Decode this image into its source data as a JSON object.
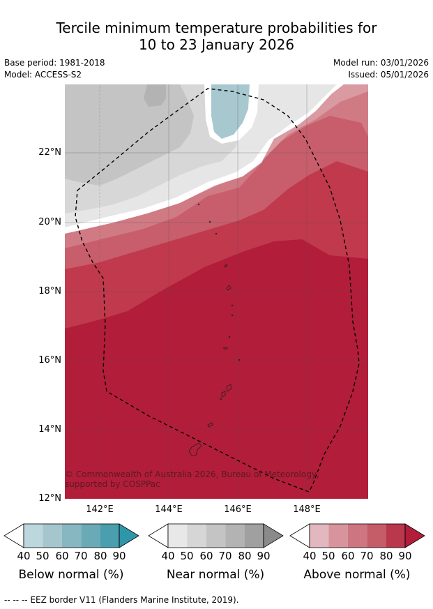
{
  "title": {
    "line1": "Tercile minimum temperature probabilities for",
    "line2": "10 to 23 January 2026"
  },
  "meta": {
    "base_period": "Base period: 1981-2018",
    "model": "Model: ACCESS-S2",
    "model_run": "Model run: 03/01/2026",
    "issued": "Issued: 05/01/2026"
  },
  "map": {
    "lat_labels": [
      "22°N",
      "20°N",
      "18°N",
      "16°N",
      "14°N",
      "12°N"
    ],
    "lon_labels": [
      "142°E",
      "144°E",
      "146°E",
      "148°E"
    ],
    "copyright": "© Commonwealth of Australia 2026, Bureau of Meteorology, supported by COSPPac",
    "colors": {
      "above_90": "#b21d3a",
      "above_80": "#c0394c",
      "above_70": "#c85e6b",
      "above_60": "#d07a84",
      "above_50": "#d99aa2",
      "near_40": "#e6e6e6",
      "near_50": "#d7d7d7",
      "near_60": "#c4c4c4",
      "near_70": "#b3b3b3",
      "below_50": "#a7c8ce"
    }
  },
  "legend": {
    "below": {
      "title": "Below normal (%)",
      "ticks": [
        "40",
        "50",
        "60",
        "70",
        "80",
        "90"
      ],
      "colors": [
        "#bcd7dd",
        "#a4c6cc",
        "#87b7c1",
        "#6aaab7",
        "#4a9eae",
        "#2e96a8"
      ]
    },
    "near": {
      "title": "Near normal (%)",
      "ticks": [
        "40",
        "50",
        "60",
        "70",
        "80",
        "90"
      ],
      "colors": [
        "#e8e8e8",
        "#d6d6d6",
        "#c4c4c4",
        "#b3b3b3",
        "#a0a0a0",
        "#8a8a8a"
      ]
    },
    "above": {
      "title": "Above normal (%)",
      "ticks": [
        "40",
        "50",
        "60",
        "70",
        "80",
        "90"
      ],
      "colors": [
        "#e2b7bf",
        "#d8949c",
        "#cd7580",
        "#c55d68",
        "#b9384b",
        "#b21d3a"
      ]
    }
  },
  "footer": "--  --  -- EEZ border V11 (Flanders Marine Institute, 2019)."
}
